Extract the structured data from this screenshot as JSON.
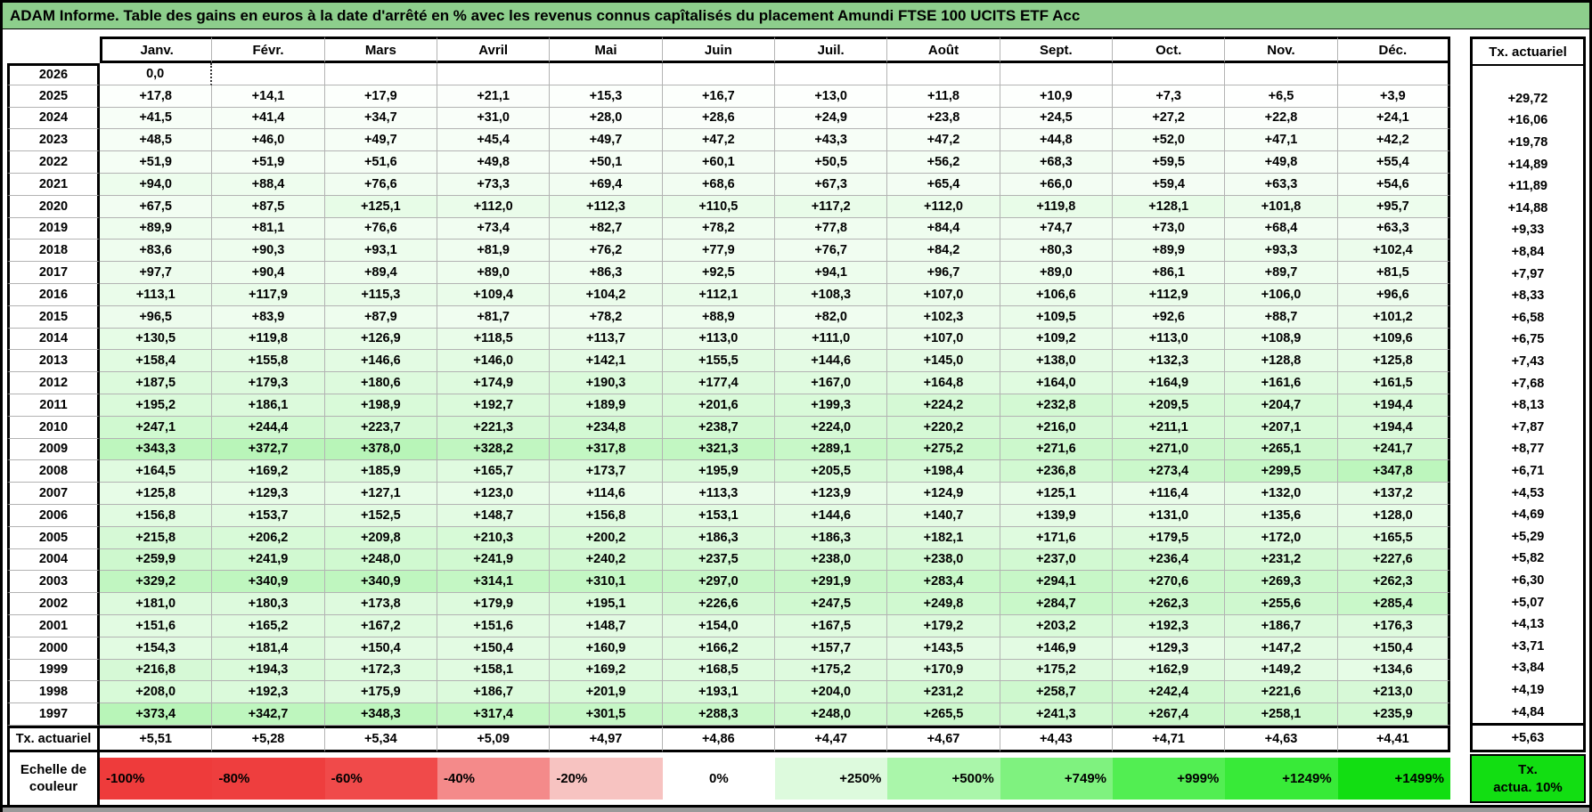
{
  "title": "ADAM Informe. Table des gains en euros à la date d'arrêté en % avec les revenus connus capîtalisés du placement Amundi FTSE 100 UCITS ETF Acc",
  "table": {
    "months": [
      "Janv.",
      "Févr.",
      "Mars",
      "Avril",
      "Mai",
      "Juin",
      "Juil.",
      "Août",
      "Sept.",
      "Oct.",
      "Nov.",
      "Déc."
    ],
    "tx_header": "Tx. actuariel",
    "rows": [
      {
        "year": "2026",
        "values": [
          "0,0",
          "",
          "",
          "",
          "",
          "",
          "",
          "",
          "",
          "",
          "",
          ""
        ],
        "tx": ""
      },
      {
        "year": "2025",
        "values": [
          "+17,8",
          "+14,1",
          "+17,9",
          "+21,1",
          "+15,3",
          "+16,7",
          "+13,0",
          "+11,8",
          "+10,9",
          "+7,3",
          "+6,5",
          "+3,9"
        ],
        "tx": "+29,72"
      },
      {
        "year": "2024",
        "values": [
          "+41,5",
          "+41,4",
          "+34,7",
          "+31,0",
          "+28,0",
          "+28,6",
          "+24,9",
          "+23,8",
          "+24,5",
          "+27,2",
          "+22,8",
          "+24,1"
        ],
        "tx": "+16,06"
      },
      {
        "year": "2023",
        "values": [
          "+48,5",
          "+46,0",
          "+49,7",
          "+45,4",
          "+49,7",
          "+47,2",
          "+43,3",
          "+47,2",
          "+44,8",
          "+52,0",
          "+47,1",
          "+42,2"
        ],
        "tx": "+19,78"
      },
      {
        "year": "2022",
        "values": [
          "+51,9",
          "+51,9",
          "+51,6",
          "+49,8",
          "+50,1",
          "+60,1",
          "+50,5",
          "+56,2",
          "+68,3",
          "+59,5",
          "+49,8",
          "+55,4"
        ],
        "tx": "+14,89"
      },
      {
        "year": "2021",
        "values": [
          "+94,0",
          "+88,4",
          "+76,6",
          "+73,3",
          "+69,4",
          "+68,6",
          "+67,3",
          "+65,4",
          "+66,0",
          "+59,4",
          "+63,3",
          "+54,6"
        ],
        "tx": "+11,89"
      },
      {
        "year": "2020",
        "values": [
          "+67,5",
          "+87,5",
          "+125,1",
          "+112,0",
          "+112,3",
          "+110,5",
          "+117,2",
          "+112,0",
          "+119,8",
          "+128,1",
          "+101,8",
          "+95,7"
        ],
        "tx": "+14,88"
      },
      {
        "year": "2019",
        "values": [
          "+89,9",
          "+81,1",
          "+76,6",
          "+73,4",
          "+82,7",
          "+78,2",
          "+77,8",
          "+84,4",
          "+74,7",
          "+73,0",
          "+68,4",
          "+63,3"
        ],
        "tx": "+9,33"
      },
      {
        "year": "2018",
        "values": [
          "+83,6",
          "+90,3",
          "+93,1",
          "+81,9",
          "+76,2",
          "+77,9",
          "+76,7",
          "+84,2",
          "+80,3",
          "+89,9",
          "+93,3",
          "+102,4"
        ],
        "tx": "+8,84"
      },
      {
        "year": "2017",
        "values": [
          "+97,7",
          "+90,4",
          "+89,4",
          "+89,0",
          "+86,3",
          "+92,5",
          "+94,1",
          "+96,7",
          "+89,0",
          "+86,1",
          "+89,7",
          "+81,5"
        ],
        "tx": "+7,97"
      },
      {
        "year": "2016",
        "values": [
          "+113,1",
          "+117,9",
          "+115,3",
          "+109,4",
          "+104,2",
          "+112,1",
          "+108,3",
          "+107,0",
          "+106,6",
          "+112,9",
          "+106,0",
          "+96,6"
        ],
        "tx": "+8,33"
      },
      {
        "year": "2015",
        "values": [
          "+96,5",
          "+83,9",
          "+87,9",
          "+81,7",
          "+78,2",
          "+88,9",
          "+82,0",
          "+102,3",
          "+109,5",
          "+92,6",
          "+88,7",
          "+101,2"
        ],
        "tx": "+6,58"
      },
      {
        "year": "2014",
        "values": [
          "+130,5",
          "+119,8",
          "+126,9",
          "+118,5",
          "+113,7",
          "+113,0",
          "+111,0",
          "+107,0",
          "+109,2",
          "+113,0",
          "+108,9",
          "+109,6"
        ],
        "tx": "+6,75"
      },
      {
        "year": "2013",
        "values": [
          "+158,4",
          "+155,8",
          "+146,6",
          "+146,0",
          "+142,1",
          "+155,5",
          "+144,6",
          "+145,0",
          "+138,0",
          "+132,3",
          "+128,8",
          "+125,8"
        ],
        "tx": "+7,43"
      },
      {
        "year": "2012",
        "values": [
          "+187,5",
          "+179,3",
          "+180,6",
          "+174,9",
          "+190,3",
          "+177,4",
          "+167,0",
          "+164,8",
          "+164,0",
          "+164,9",
          "+161,6",
          "+161,5"
        ],
        "tx": "+7,68"
      },
      {
        "year": "2011",
        "values": [
          "+195,2",
          "+186,1",
          "+198,9",
          "+192,7",
          "+189,9",
          "+201,6",
          "+199,3",
          "+224,2",
          "+232,8",
          "+209,5",
          "+204,7",
          "+194,4"
        ],
        "tx": "+8,13"
      },
      {
        "year": "2010",
        "values": [
          "+247,1",
          "+244,4",
          "+223,7",
          "+221,3",
          "+234,8",
          "+238,7",
          "+224,0",
          "+220,2",
          "+216,0",
          "+211,1",
          "+207,1",
          "+194,4"
        ],
        "tx": "+7,87"
      },
      {
        "year": "2009",
        "values": [
          "+343,3",
          "+372,7",
          "+378,0",
          "+328,2",
          "+317,8",
          "+321,3",
          "+289,1",
          "+275,2",
          "+271,6",
          "+271,0",
          "+265,1",
          "+241,7"
        ],
        "tx": "+8,77"
      },
      {
        "year": "2008",
        "values": [
          "+164,5",
          "+169,2",
          "+185,9",
          "+165,7",
          "+173,7",
          "+195,9",
          "+205,5",
          "+198,4",
          "+236,8",
          "+273,4",
          "+299,5",
          "+347,8"
        ],
        "tx": "+6,71"
      },
      {
        "year": "2007",
        "values": [
          "+125,8",
          "+129,3",
          "+127,1",
          "+123,0",
          "+114,6",
          "+113,3",
          "+123,9",
          "+124,9",
          "+125,1",
          "+116,4",
          "+132,0",
          "+137,2"
        ],
        "tx": "+4,53"
      },
      {
        "year": "2006",
        "values": [
          "+156,8",
          "+153,7",
          "+152,5",
          "+148,7",
          "+156,8",
          "+153,1",
          "+144,6",
          "+140,7",
          "+139,9",
          "+131,0",
          "+135,6",
          "+128,0"
        ],
        "tx": "+4,69"
      },
      {
        "year": "2005",
        "values": [
          "+215,8",
          "+206,2",
          "+209,8",
          "+210,3",
          "+200,2",
          "+186,3",
          "+186,3",
          "+182,1",
          "+171,6",
          "+179,5",
          "+172,0",
          "+165,5"
        ],
        "tx": "+5,29"
      },
      {
        "year": "2004",
        "values": [
          "+259,9",
          "+241,9",
          "+248,0",
          "+241,9",
          "+240,2",
          "+237,5",
          "+238,0",
          "+238,0",
          "+237,0",
          "+236,4",
          "+231,2",
          "+227,6"
        ],
        "tx": "+5,82"
      },
      {
        "year": "2003",
        "values": [
          "+329,2",
          "+340,9",
          "+340,9",
          "+314,1",
          "+310,1",
          "+297,0",
          "+291,9",
          "+283,4",
          "+294,1",
          "+270,6",
          "+269,3",
          "+262,3"
        ],
        "tx": "+6,30"
      },
      {
        "year": "2002",
        "values": [
          "+181,0",
          "+180,3",
          "+173,8",
          "+179,9",
          "+195,1",
          "+226,6",
          "+247,5",
          "+249,8",
          "+284,7",
          "+262,3",
          "+255,6",
          "+285,4"
        ],
        "tx": "+5,07"
      },
      {
        "year": "2001",
        "values": [
          "+151,6",
          "+165,2",
          "+167,2",
          "+151,6",
          "+148,7",
          "+154,0",
          "+167,5",
          "+179,2",
          "+203,2",
          "+192,3",
          "+186,7",
          "+176,3"
        ],
        "tx": "+4,13"
      },
      {
        "year": "2000",
        "values": [
          "+154,3",
          "+181,4",
          "+150,4",
          "+150,4",
          "+160,9",
          "+166,2",
          "+157,7",
          "+143,5",
          "+146,9",
          "+129,3",
          "+147,2",
          "+150,4"
        ],
        "tx": "+3,71"
      },
      {
        "year": "1999",
        "values": [
          "+216,8",
          "+194,3",
          "+172,3",
          "+158,1",
          "+169,2",
          "+168,5",
          "+175,2",
          "+170,9",
          "+175,2",
          "+162,9",
          "+149,2",
          "+134,6"
        ],
        "tx": "+3,84"
      },
      {
        "year": "1998",
        "values": [
          "+208,0",
          "+192,3",
          "+175,9",
          "+186,7",
          "+201,9",
          "+193,1",
          "+204,0",
          "+231,2",
          "+258,7",
          "+242,4",
          "+221,6",
          "+213,0"
        ],
        "tx": "+4,19"
      },
      {
        "year": "1997",
        "values": [
          "+373,4",
          "+342,7",
          "+348,3",
          "+317,4",
          "+301,5",
          "+288,3",
          "+248,0",
          "+265,5",
          "+241,3",
          "+267,4",
          "+258,1",
          "+235,9"
        ],
        "tx": "+4,84"
      }
    ],
    "footer": {
      "label": "Tx. actuariel",
      "values": [
        "+5,51",
        "+5,28",
        "+5,34",
        "+5,09",
        "+4,97",
        "+4,86",
        "+4,47",
        "+4,67",
        "+4,43",
        "+4,71",
        "+4,63",
        "+4,41"
      ],
      "tx": "+5,63"
    }
  },
  "legend": {
    "label": "Echelle de couleur",
    "swatches": [
      {
        "label": "-100%",
        "color": "#EE3B3B",
        "align": "left"
      },
      {
        "label": "-80%",
        "color": "#EE3E3E",
        "align": "left"
      },
      {
        "label": "-60%",
        "color": "#F04A4A",
        "align": "left"
      },
      {
        "label": "-40%",
        "color": "#F48A8A",
        "align": "left"
      },
      {
        "label": "-20%",
        "color": "#F7C3C1",
        "align": "left"
      },
      {
        "label": "0%",
        "color": "#FFFFFF",
        "align": "center"
      },
      {
        "label": "+250%",
        "color": "#DDFADD",
        "align": "right"
      },
      {
        "label": "+500%",
        "color": "#AAF6AA",
        "align": "right"
      },
      {
        "label": "+749%",
        "color": "#7FF27F",
        "align": "right"
      },
      {
        "label": "+999%",
        "color": "#52EE52",
        "align": "right"
      },
      {
        "label": "+1249%",
        "color": "#38EA38",
        "align": "right"
      },
      {
        "label": "+1499%",
        "color": "#12DE12",
        "align": "right"
      }
    ],
    "tx_box": {
      "line1": "Tx.",
      "line2": "actua. 10%",
      "color": "#12DE12"
    }
  },
  "colors": {
    "title_bg": "#8DCE8C",
    "grid_line": "#b3b3b3",
    "scale_max_green": "#12DE12"
  }
}
